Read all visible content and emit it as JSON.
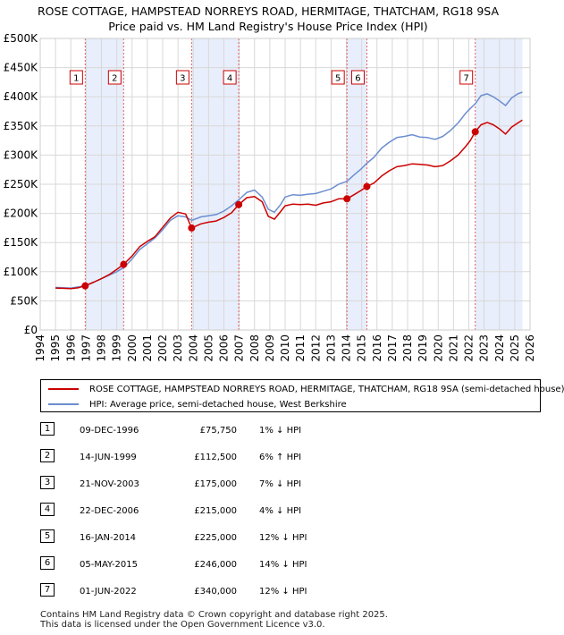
{
  "chart_data": {
    "type": "line",
    "title": "ROSE COTTAGE, HAMPSTEAD NORREYS ROAD, HERMITAGE, THATCHAM, RG18 9SA",
    "subtitle": "Price paid vs. HM Land Registry's House Price Index (HPI)",
    "xlim": [
      1994,
      2026
    ],
    "ylim": [
      0,
      500000
    ],
    "x_ticks": [
      "1994",
      "1995",
      "1996",
      "1997",
      "1998",
      "1999",
      "2000",
      "2001",
      "2002",
      "2003",
      "2004",
      "2005",
      "2006",
      "2007",
      "2008",
      "2009",
      "2010",
      "2011",
      "2012",
      "2013",
      "2014",
      "2015",
      "2016",
      "2017",
      "2018",
      "2019",
      "2020",
      "2021",
      "2022",
      "2023",
      "2024",
      "2025",
      "2026"
    ],
    "y_ticks": [
      {
        "value": 0,
        "label": "£0"
      },
      {
        "value": 50000,
        "label": "£50K"
      },
      {
        "value": 100000,
        "label": "£100K"
      },
      {
        "value": 150000,
        "label": "£150K"
      },
      {
        "value": 200000,
        "label": "£200K"
      },
      {
        "value": 250000,
        "label": "£250K"
      },
      {
        "value": 300000,
        "label": "£300K"
      },
      {
        "value": 350000,
        "label": "£350K"
      },
      {
        "value": 400000,
        "label": "£400K"
      },
      {
        "value": 450000,
        "label": "£450K"
      },
      {
        "value": 500000,
        "label": "£500K"
      }
    ],
    "shaded_periods": [
      [
        1996.94,
        1999.45
      ],
      [
        2003.89,
        2006.97
      ],
      [
        2014.04,
        2015.34
      ],
      [
        2022.42,
        2025.5
      ]
    ],
    "series": [
      {
        "name": "ROSE COTTAGE, HAMPSTEAD NORREYS ROAD, HERMITAGE, THATCHAM, RG18 9SA (semi-detached house)",
        "color": "#cc0000",
        "points": [
          [
            1995.0,
            72000
          ],
          [
            1995.5,
            71500
          ],
          [
            1996.0,
            71000
          ],
          [
            1996.5,
            72500
          ],
          [
            1996.94,
            75750
          ],
          [
            1997.5,
            82000
          ],
          [
            1998.0,
            88000
          ],
          [
            1998.5,
            95000
          ],
          [
            1999.0,
            104000
          ],
          [
            1999.45,
            112500
          ],
          [
            2000.0,
            127000
          ],
          [
            2000.5,
            143000
          ],
          [
            2001.0,
            152000
          ],
          [
            2001.5,
            160000
          ],
          [
            2002.0,
            176000
          ],
          [
            2002.5,
            192000
          ],
          [
            2003.0,
            202000
          ],
          [
            2003.5,
            199000
          ],
          [
            2003.89,
            175000
          ],
          [
            2004.5,
            182000
          ],
          [
            2005.0,
            185000
          ],
          [
            2005.5,
            187000
          ],
          [
            2006.0,
            193000
          ],
          [
            2006.5,
            201000
          ],
          [
            2006.97,
            215000
          ],
          [
            2007.5,
            227000
          ],
          [
            2008.0,
            229000
          ],
          [
            2008.5,
            220000
          ],
          [
            2008.9,
            195000
          ],
          [
            2009.3,
            190000
          ],
          [
            2009.7,
            203000
          ],
          [
            2010.0,
            213000
          ],
          [
            2010.5,
            216000
          ],
          [
            2011.0,
            215000
          ],
          [
            2011.5,
            216000
          ],
          [
            2012.0,
            214000
          ],
          [
            2012.5,
            218000
          ],
          [
            2013.0,
            220000
          ],
          [
            2013.5,
            225000
          ],
          [
            2014.04,
            225000
          ],
          [
            2014.5,
            232000
          ],
          [
            2015.0,
            240000
          ],
          [
            2015.34,
            246000
          ],
          [
            2015.8,
            252000
          ],
          [
            2016.3,
            264000
          ],
          [
            2016.8,
            273000
          ],
          [
            2017.3,
            280000
          ],
          [
            2017.8,
            282000
          ],
          [
            2018.3,
            285000
          ],
          [
            2018.8,
            284000
          ],
          [
            2019.3,
            283000
          ],
          [
            2019.8,
            280000
          ],
          [
            2020.3,
            282000
          ],
          [
            2020.8,
            290000
          ],
          [
            2021.3,
            300000
          ],
          [
            2021.8,
            315000
          ],
          [
            2022.1,
            325000
          ],
          [
            2022.42,
            340000
          ],
          [
            2022.8,
            352000
          ],
          [
            2023.2,
            356000
          ],
          [
            2023.6,
            352000
          ],
          [
            2024.0,
            345000
          ],
          [
            2024.4,
            336000
          ],
          [
            2024.8,
            348000
          ],
          [
            2025.2,
            355000
          ],
          [
            2025.5,
            360000
          ]
        ]
      },
      {
        "name": "HPI: Average price, semi-detached house, West Berkshire",
        "color": "#6c8ed0",
        "points": [
          [
            1995.0,
            73000
          ],
          [
            1995.5,
            72500
          ],
          [
            1996.0,
            72000
          ],
          [
            1996.5,
            74000
          ],
          [
            1997.0,
            77000
          ],
          [
            1997.5,
            82000
          ],
          [
            1998.0,
            88000
          ],
          [
            1998.5,
            94000
          ],
          [
            1999.0,
            100000
          ],
          [
            1999.5,
            108000
          ],
          [
            2000.0,
            122000
          ],
          [
            2000.5,
            138000
          ],
          [
            2001.0,
            148000
          ],
          [
            2001.5,
            158000
          ],
          [
            2002.0,
            172000
          ],
          [
            2002.5,
            188000
          ],
          [
            2003.0,
            196000
          ],
          [
            2003.5,
            194000
          ],
          [
            2003.89,
            188000
          ],
          [
            2004.5,
            194000
          ],
          [
            2005.0,
            196000
          ],
          [
            2005.5,
            198000
          ],
          [
            2006.0,
            204000
          ],
          [
            2006.5,
            213000
          ],
          [
            2007.0,
            224000
          ],
          [
            2007.5,
            236000
          ],
          [
            2008.0,
            240000
          ],
          [
            2008.5,
            228000
          ],
          [
            2008.9,
            207000
          ],
          [
            2009.3,
            202000
          ],
          [
            2009.7,
            215000
          ],
          [
            2010.0,
            228000
          ],
          [
            2010.5,
            232000
          ],
          [
            2011.0,
            231000
          ],
          [
            2011.5,
            233000
          ],
          [
            2012.0,
            234000
          ],
          [
            2012.5,
            238000
          ],
          [
            2013.0,
            242000
          ],
          [
            2013.5,
            250000
          ],
          [
            2014.04,
            255000
          ],
          [
            2014.5,
            266000
          ],
          [
            2015.0,
            277000
          ],
          [
            2015.34,
            286000
          ],
          [
            2015.8,
            296000
          ],
          [
            2016.3,
            312000
          ],
          [
            2016.8,
            322000
          ],
          [
            2017.3,
            330000
          ],
          [
            2017.8,
            332000
          ],
          [
            2018.3,
            335000
          ],
          [
            2018.8,
            331000
          ],
          [
            2019.3,
            330000
          ],
          [
            2019.8,
            327000
          ],
          [
            2020.3,
            332000
          ],
          [
            2020.8,
            342000
          ],
          [
            2021.3,
            355000
          ],
          [
            2021.8,
            372000
          ],
          [
            2022.1,
            380000
          ],
          [
            2022.42,
            388000
          ],
          [
            2022.8,
            402000
          ],
          [
            2023.2,
            405000
          ],
          [
            2023.6,
            400000
          ],
          [
            2024.0,
            393000
          ],
          [
            2024.4,
            385000
          ],
          [
            2024.8,
            398000
          ],
          [
            2025.2,
            405000
          ],
          [
            2025.5,
            408000
          ]
        ]
      }
    ],
    "sales": [
      {
        "num": "1",
        "x": 1996.94,
        "price": 75750
      },
      {
        "num": "2",
        "x": 1999.45,
        "price": 112500
      },
      {
        "num": "3",
        "x": 2003.89,
        "price": 175000
      },
      {
        "num": "4",
        "x": 2006.97,
        "price": 215000
      },
      {
        "num": "5",
        "x": 2014.04,
        "price": 225000
      },
      {
        "num": "6",
        "x": 2015.34,
        "price": 246000
      },
      {
        "num": "7",
        "x": 2022.42,
        "price": 340000
      }
    ]
  },
  "title_line1": "ROSE COTTAGE, HAMPSTEAD NORREYS ROAD, HERMITAGE, THATCHAM, RG18 9SA",
  "title_line2": "Price paid vs. HM Land Registry's House Price Index (HPI)",
  "legend": {
    "property_label": "ROSE COTTAGE, HAMPSTEAD NORREYS ROAD, HERMITAGE, THATCHAM, RG18 9SA (semi-detached house)",
    "property_color": "#cc0000",
    "hpi_label": "HPI: Average price, semi-detached house, West Berkshire",
    "hpi_color": "#6c8ed0"
  },
  "sales_table": [
    {
      "num": "1",
      "date": "09-DEC-1996",
      "price": "£75,750",
      "hpi": "1% ↓ HPI"
    },
    {
      "num": "2",
      "date": "14-JUN-1999",
      "price": "£112,500",
      "hpi": "6% ↑ HPI"
    },
    {
      "num": "3",
      "date": "21-NOV-2003",
      "price": "£175,000",
      "hpi": "7% ↓ HPI"
    },
    {
      "num": "4",
      "date": "22-DEC-2006",
      "price": "£215,000",
      "hpi": "4% ↓ HPI"
    },
    {
      "num": "5",
      "date": "16-JAN-2014",
      "price": "£225,000",
      "hpi": "12% ↓ HPI"
    },
    {
      "num": "6",
      "date": "05-MAY-2015",
      "price": "£246,000",
      "hpi": "14% ↓ HPI"
    },
    {
      "num": "7",
      "date": "01-JUN-2022",
      "price": "£340,000",
      "hpi": "12% ↓ HPI"
    }
  ],
  "footer": {
    "line1": "Contains HM Land Registry data © Crown copyright and database right 2025.",
    "line2": "This data is licensed under the Open Government Licence v3.0."
  }
}
